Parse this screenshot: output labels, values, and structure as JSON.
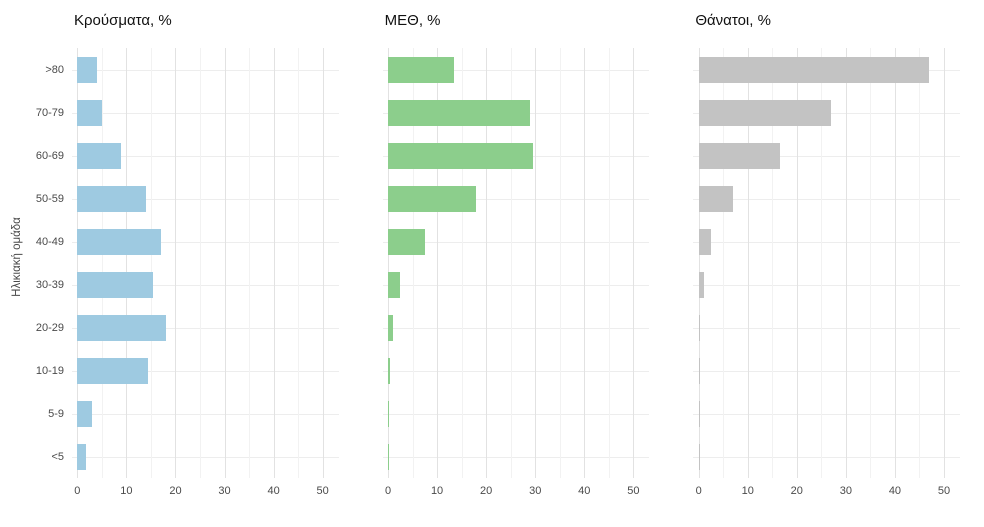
{
  "chart_data": {
    "type": "bar",
    "orientation": "horizontal",
    "ylabel": "Ηλικιακή ομάδα",
    "categories": [
      ">80",
      "70-79",
      "60-69",
      "50-59",
      "40-49",
      "30-39",
      "20-29",
      "10-19",
      "5-9",
      "<5"
    ],
    "xlim": [
      0,
      50
    ],
    "xticks": [
      0,
      10,
      20,
      30,
      40,
      50
    ],
    "minor_xticks": [
      5,
      15,
      25,
      35,
      45
    ],
    "grid": true,
    "background": "#ffffff",
    "panels": [
      {
        "title": "Κρούσματα, %",
        "color": "#9ecae1",
        "values": [
          4,
          5,
          9,
          14,
          17,
          15.5,
          18,
          14.5,
          3,
          1.8
        ]
      },
      {
        "title": "ΜΕΘ, %",
        "color": "#8cce8c",
        "values": [
          13.5,
          29,
          29.5,
          18,
          7.5,
          2.5,
          1,
          0.4,
          0.2,
          0.2
        ]
      },
      {
        "title": "Θάνατοι, %",
        "color": "#c3c3c3",
        "values": [
          47,
          27,
          16.5,
          7,
          2.5,
          1,
          0.3,
          0.2,
          0.1,
          0.2
        ]
      }
    ]
  }
}
